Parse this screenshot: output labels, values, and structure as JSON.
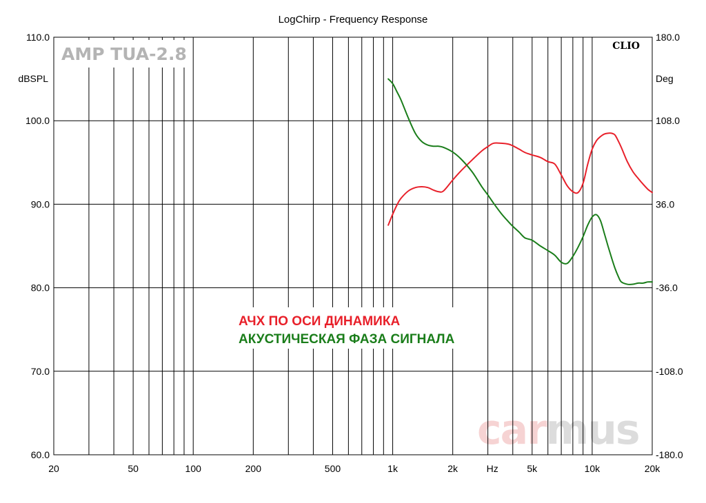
{
  "chart_data": {
    "type": "line",
    "title": "LogChirp - Frequency Response",
    "xlabel": "Hz",
    "x_scale": "log",
    "xlim": [
      20,
      20000
    ],
    "x_ticks": [
      20,
      50,
      100,
      200,
      500,
      1000,
      2000,
      5000,
      10000,
      20000
    ],
    "x_tick_labels": [
      "20",
      "50",
      "100",
      "200",
      "500",
      "1k",
      "2k",
      "5k",
      "10k",
      "20k"
    ],
    "y_left_label": "dBSPL",
    "ylim_left": [
      60,
      110
    ],
    "y_left_ticks": [
      "110.0",
      "100.0",
      "90.0",
      "80.0",
      "70.0",
      "60.0"
    ],
    "y_right_label": "Deg",
    "ylim_right": [
      -180,
      180
    ],
    "y_right_ticks": [
      "180.0",
      "108.0",
      "36.0",
      "-36.0",
      "-108.0",
      "-180.0"
    ],
    "grid": true,
    "brand": "CLIO",
    "device": "AMP TUA-2.8",
    "watermark": "carmus",
    "annotations": [
      {
        "text": "АЧХ ПО ОСИ ДИНАМИКА",
        "color": "#e8202a"
      },
      {
        "text": "АКУСТИЧЕСКАЯ ФАЗА СИГНАЛА",
        "color": "#1a7d1a"
      }
    ],
    "series": [
      {
        "axis": "left",
        "color": "#e8202a",
        "x": [
          950,
          1000,
          1050,
          1100,
          1200,
          1300,
          1400,
          1500,
          1600,
          1700,
          1800,
          2000,
          2200,
          2500,
          2800,
          3000,
          3200,
          3500,
          3800,
          4000,
          4300,
          4600,
          5000,
          5500,
          6000,
          6500,
          7000,
          7500,
          8000,
          8500,
          9000,
          9500,
          10000,
          10500,
          11000,
          11500,
          12000,
          12500,
          13000,
          13500,
          14000,
          15000,
          16000,
          17000,
          18000,
          19000,
          20000
        ],
        "y": [
          87.5,
          88.8,
          89.9,
          90.7,
          91.6,
          92.0,
          92.1,
          92.0,
          91.7,
          91.5,
          91.6,
          92.9,
          94.0,
          95.3,
          96.4,
          96.9,
          97.3,
          97.3,
          97.2,
          97.0,
          96.6,
          96.2,
          95.9,
          95.6,
          95.1,
          94.8,
          93.5,
          92.2,
          91.5,
          91.4,
          92.5,
          94.8,
          96.6,
          97.6,
          98.1,
          98.4,
          98.5,
          98.5,
          98.3,
          97.6,
          96.8,
          95.1,
          93.9,
          93.1,
          92.4,
          91.8,
          91.4
        ]
      },
      {
        "axis": "right",
        "color": "#1a7d1a",
        "x": [
          950,
          1000,
          1050,
          1100,
          1200,
          1300,
          1400,
          1500,
          1600,
          1700,
          1800,
          2000,
          2200,
          2500,
          2800,
          3000,
          3200,
          3500,
          3800,
          4000,
          4300,
          4600,
          5000,
          5500,
          6000,
          6500,
          7000,
          7500,
          8000,
          8500,
          9000,
          9500,
          10000,
          10500,
          11000,
          11500,
          12000,
          12500,
          13000,
          13500,
          14000,
          15000,
          16000,
          17000,
          18000,
          19000,
          20000
        ],
        "y": [
          144,
          140,
          133,
          126,
          110,
          97,
          90,
          87,
          86,
          86,
          85,
          81,
          75,
          64,
          51,
          44,
          37,
          28,
          21,
          17,
          12,
          7,
          5,
          0,
          -4,
          -8,
          -14,
          -15,
          -9,
          -1,
          8,
          18,
          25,
          27,
          22,
          11,
          0,
          -10,
          -19,
          -26,
          -31,
          -33,
          -33,
          -32,
          -32,
          -31,
          -31
        ]
      }
    ]
  }
}
